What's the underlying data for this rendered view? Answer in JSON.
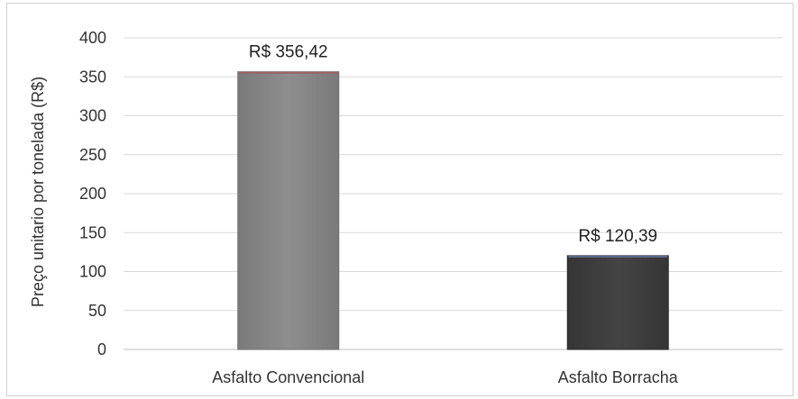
{
  "chart_data": {
    "type": "bar",
    "title": "",
    "xlabel": "",
    "ylabel": "Preço unitario por tonelada (R$)",
    "ylim": [
      0,
      400
    ],
    "yticks": [
      0,
      50,
      100,
      150,
      200,
      250,
      300,
      350,
      400
    ],
    "grid": true,
    "categories": [
      "Asfalto Convencional",
      "Asfalto Borracha"
    ],
    "values": [
      356.42,
      120.39
    ],
    "data_labels": [
      "R$ 356,42",
      "R$ 120,39"
    ],
    "colors": [
      "#8a8a8a",
      "#404040"
    ]
  }
}
